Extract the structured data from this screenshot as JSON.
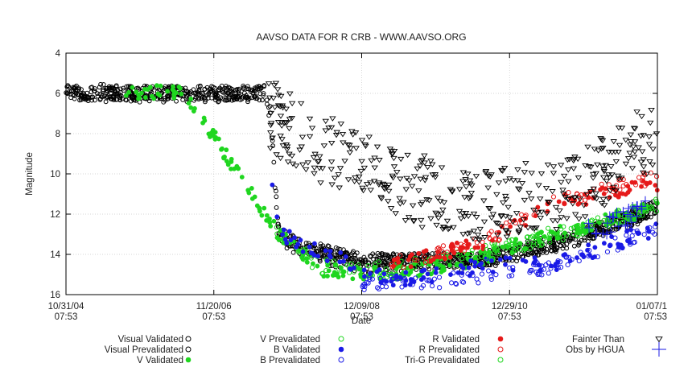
{
  "chart_data": {
    "type": "scatter",
    "title": "AAVSO DATA FOR R CRB - WWW.AAVSO.ORG",
    "xlabel": "Date",
    "ylabel": "Magnitude",
    "ylim": [
      16,
      4
    ],
    "y_inverted": true,
    "y_ticks": [
      "4",
      "6",
      "8",
      "10",
      "12",
      "14",
      "16"
    ],
    "x_ticks": [
      {
        "date": "10/31/04",
        "time": "07:53"
      },
      {
        "date": "11/20/06",
        "time": "07:53"
      },
      {
        "date": "12/09/08",
        "time": "07:53"
      },
      {
        "date": "12/29/10",
        "time": "07:53"
      },
      {
        "date": "01/07/1",
        "time": "07:53"
      }
    ],
    "grid": true,
    "legend_position": "bottom",
    "series": [
      {
        "name": "Visual Validated",
        "marker": "open-circle",
        "color": "#000000",
        "trend": [
          [
            0,
            6.0
          ],
          [
            0.335,
            6.0
          ],
          [
            0.345,
            7.0
          ],
          [
            0.36,
            13.0
          ],
          [
            0.4,
            13.6
          ],
          [
            0.5,
            14.3
          ],
          [
            0.7,
            14.3
          ],
          [
            0.85,
            13.3
          ],
          [
            1.0,
            11.7
          ]
        ]
      },
      {
        "name": "Visual Prevalidated",
        "marker": "open-circle",
        "color": "#000000",
        "trend": [
          [
            0,
            6.0
          ],
          [
            0.335,
            6.0
          ],
          [
            0.345,
            7.0
          ],
          [
            0.36,
            13.0
          ],
          [
            0.4,
            13.8
          ],
          [
            0.5,
            14.5
          ],
          [
            0.7,
            14.3
          ],
          [
            0.85,
            13.3
          ],
          [
            1.0,
            11.7
          ]
        ]
      },
      {
        "name": "V Validated",
        "marker": "filled-circle",
        "color": "#1fd61f",
        "trend": [
          [
            0.1,
            6.0
          ],
          [
            0.2,
            5.9
          ],
          [
            0.355,
            12.8
          ],
          [
            0.43,
            14.8
          ],
          [
            0.55,
            15.0
          ],
          [
            0.7,
            14.2
          ],
          [
            0.82,
            13.0
          ],
          [
            1.0,
            11.7
          ]
        ]
      },
      {
        "name": "V Prevalidated",
        "marker": "open-circle",
        "color": "#1fd61f",
        "trend": [
          [
            0.355,
            12.8
          ],
          [
            0.43,
            14.6
          ],
          [
            0.55,
            14.8
          ],
          [
            0.7,
            14.0
          ],
          [
            0.82,
            13.0
          ],
          [
            1.0,
            11.6
          ]
        ]
      },
      {
        "name": "B Validated",
        "marker": "filled-circle",
        "color": "#1a1ae6",
        "trend": [
          [
            0.34,
            8.5
          ],
          [
            0.36,
            13.0
          ],
          [
            0.55,
            15.3
          ],
          [
            0.7,
            14.6
          ],
          [
            0.82,
            14.5
          ],
          [
            1.0,
            12.7
          ]
        ]
      },
      {
        "name": "B Prevalidated",
        "marker": "open-circle",
        "color": "#1a1ae6",
        "trend": [
          [
            0.5,
            15.5
          ],
          [
            0.7,
            15.2
          ],
          [
            0.82,
            14.6
          ],
          [
            1.0,
            12.8
          ]
        ]
      },
      {
        "name": "R Validated",
        "marker": "filled-circle",
        "color": "#e61a1a",
        "trend": [
          [
            0.55,
            14.5
          ],
          [
            0.7,
            13.5
          ],
          [
            0.82,
            11.5
          ],
          [
            1.0,
            10.5
          ]
        ]
      },
      {
        "name": "R Prevalidated",
        "marker": "open-circle",
        "color": "#e61a1a",
        "trend": [
          [
            0.55,
            14.5
          ],
          [
            0.7,
            13.5
          ],
          [
            0.82,
            11.5
          ],
          [
            1.0,
            10.1
          ]
        ]
      },
      {
        "name": "Tri-G Prevalidated",
        "marker": "open-circle",
        "color": "#1fd61f",
        "trend": [
          [
            0.7,
            14.0
          ],
          [
            0.85,
            13.0
          ],
          [
            1.0,
            11.5
          ]
        ]
      },
      {
        "name": "Fainter Than",
        "marker": "open-triangle-down",
        "color": "#000000",
        "trend": [
          [
            0.34,
            7.0
          ],
          [
            0.45,
            9.0
          ],
          [
            0.55,
            10.5
          ],
          [
            0.7,
            11.5
          ],
          [
            0.85,
            11.0
          ],
          [
            1.0,
            8.0
          ]
        ]
      },
      {
        "name": "Obs by HGUA",
        "marker": "plus",
        "color": "#1a1ae6",
        "trend": [
          [
            0.88,
            13.0
          ],
          [
            0.93,
            12.3
          ],
          [
            0.98,
            11.8
          ]
        ]
      }
    ]
  }
}
